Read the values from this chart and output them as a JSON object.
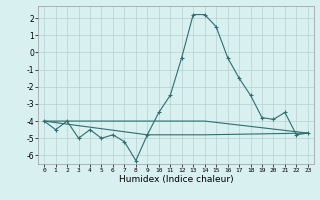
{
  "xlabel": "Humidex (Indice chaleur)",
  "x": [
    0,
    1,
    2,
    3,
    4,
    5,
    6,
    7,
    8,
    9,
    10,
    11,
    12,
    13,
    14,
    15,
    16,
    17,
    18,
    19,
    20,
    21,
    22,
    23
  ],
  "line1": [
    -4.0,
    -4.5,
    -4.0,
    -5.0,
    -4.5,
    -5.0,
    -4.8,
    -5.2,
    -6.3,
    -4.8,
    -3.5,
    -2.5,
    -0.3,
    2.2,
    2.2,
    1.5,
    -0.3,
    -1.5,
    -2.5,
    -3.8,
    -3.9,
    -3.5,
    -4.8,
    -4.7
  ],
  "line2_x": [
    0,
    14,
    23
  ],
  "line2_y": [
    -4.0,
    -4.0,
    -4.7
  ],
  "line3_x": [
    0,
    9,
    14,
    23
  ],
  "line3_y": [
    -4.0,
    -4.8,
    -4.8,
    -4.7
  ],
  "line_color": "#2e6e6e",
  "bg_color": "#d8f0f0",
  "grid_color": "#b8d0d0",
  "ylim": [
    -6.5,
    2.7
  ],
  "yticks": [
    -6,
    -5,
    -4,
    -3,
    -2,
    -1,
    0,
    1,
    2
  ],
  "xticks": [
    0,
    1,
    2,
    3,
    4,
    5,
    6,
    7,
    8,
    9,
    10,
    11,
    12,
    13,
    14,
    15,
    16,
    17,
    18,
    19,
    20,
    21,
    22,
    23
  ]
}
